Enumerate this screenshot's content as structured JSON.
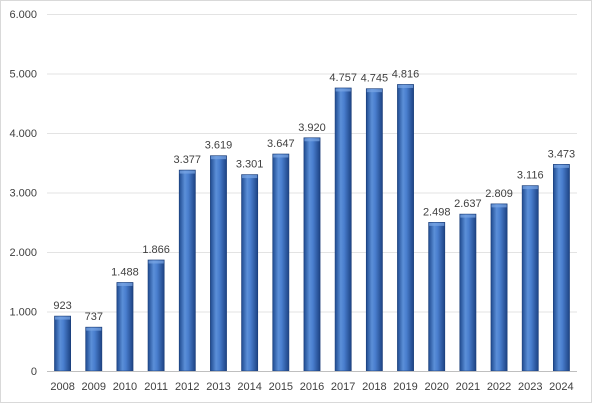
{
  "chart_data": {
    "type": "bar",
    "title": "",
    "xlabel": "",
    "ylabel": "",
    "categories": [
      "2008",
      "2009",
      "2010",
      "2011",
      "2012",
      "2013",
      "2014",
      "2015",
      "2016",
      "2017",
      "2018",
      "2019",
      "2020",
      "2021",
      "2022",
      "2023",
      "2024"
    ],
    "values": [
      923,
      737,
      1488,
      1866,
      3377,
      3619,
      3301,
      3647,
      3920,
      4757,
      4745,
      4816,
      2498,
      2637,
      2809,
      3116,
      3473
    ],
    "value_labels": [
      "923",
      "737",
      "1.488",
      "1.866",
      "3.377",
      "3.619",
      "3.301",
      "3.647",
      "3.920",
      "4.757",
      "4.745",
      "4.816",
      "2.498",
      "2.637",
      "2.809",
      "3.116",
      "3.473"
    ],
    "ylim": [
      0,
      6000
    ],
    "y_ticks": [
      0,
      1000,
      2000,
      3000,
      4000,
      5000,
      6000
    ],
    "y_tick_labels": [
      "0",
      "1.000",
      "2.000",
      "3.000",
      "4.000",
      "5.000",
      "6.000"
    ],
    "grid": true,
    "legend": "none",
    "bar_color": "#2f5da8"
  }
}
